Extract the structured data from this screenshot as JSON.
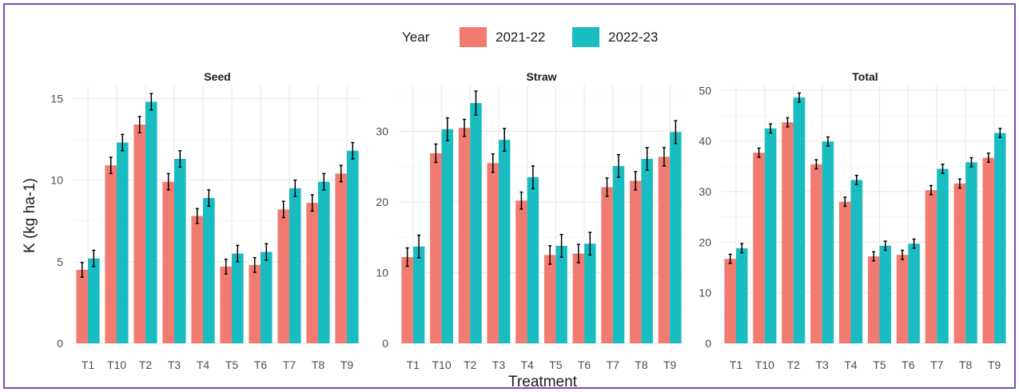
{
  "legend": {
    "title": "Year"
  },
  "axes": {
    "xlabel": "Treatment",
    "ylabel": "K (kg ha-1)"
  },
  "colors": {
    "2021-22": "#f17b70",
    "2022-23": "#19bcc1",
    "error_bar": "#000000",
    "grid": "#ebebeb",
    "frame": "#7b4fb5"
  },
  "chart_data": [
    {
      "type": "bar",
      "title": "Seed",
      "categories": [
        "T1",
        "T10",
        "T2",
        "T3",
        "T4",
        "T5",
        "T6",
        "T7",
        "T8",
        "T9"
      ],
      "ylim": [
        0,
        15.8
      ],
      "yticks": [
        0,
        5,
        10,
        15
      ],
      "grid": true,
      "legend_position": "top",
      "series": [
        {
          "name": "2021-22",
          "values": [
            4.5,
            10.9,
            13.4,
            9.9,
            7.8,
            4.7,
            4.8,
            8.2,
            8.6,
            10.4
          ],
          "errors": [
            0.45,
            0.5,
            0.5,
            0.5,
            0.45,
            0.45,
            0.45,
            0.5,
            0.5,
            0.5
          ]
        },
        {
          "name": "2022-23",
          "values": [
            5.2,
            12.3,
            14.8,
            11.3,
            8.9,
            5.5,
            5.6,
            9.5,
            9.9,
            11.8
          ],
          "errors": [
            0.5,
            0.5,
            0.5,
            0.5,
            0.5,
            0.5,
            0.5,
            0.5,
            0.5,
            0.5
          ]
        }
      ]
    },
    {
      "type": "bar",
      "title": "Straw",
      "categories": [
        "T1",
        "T10",
        "T2",
        "T3",
        "T4",
        "T5",
        "T6",
        "T7",
        "T8",
        "T9"
      ],
      "ylim": [
        0,
        36.5
      ],
      "yticks": [
        0,
        10,
        20,
        30
      ],
      "grid": true,
      "series": [
        {
          "name": "2021-22",
          "values": [
            12.2,
            26.9,
            30.5,
            25.5,
            20.2,
            12.5,
            12.7,
            22.1,
            23.0,
            26.4
          ],
          "errors": [
            1.3,
            1.3,
            1.2,
            1.3,
            1.2,
            1.3,
            1.3,
            1.3,
            1.3,
            1.3
          ]
        },
        {
          "name": "2022-23",
          "values": [
            13.7,
            30.3,
            34.0,
            28.8,
            23.5,
            13.8,
            14.1,
            25.1,
            26.1,
            29.9
          ],
          "errors": [
            1.6,
            1.6,
            1.7,
            1.6,
            1.6,
            1.6,
            1.6,
            1.6,
            1.6,
            1.6
          ]
        }
      ]
    },
    {
      "type": "bar",
      "title": "Total",
      "categories": [
        "T1",
        "T10",
        "T2",
        "T3",
        "T4",
        "T5",
        "T6",
        "T7",
        "T8",
        "T9"
      ],
      "ylim": [
        0,
        51
      ],
      "yticks": [
        0,
        10,
        20,
        30,
        40,
        50
      ],
      "grid": true,
      "series": [
        {
          "name": "2021-22",
          "values": [
            16.7,
            37.7,
            43.7,
            35.4,
            28.0,
            17.2,
            17.5,
            30.3,
            31.6,
            36.7
          ],
          "errors": [
            0.9,
            0.9,
            0.9,
            0.9,
            0.9,
            0.9,
            0.9,
            0.9,
            0.9,
            0.9
          ]
        },
        {
          "name": "2022-23",
          "values": [
            18.8,
            42.5,
            48.6,
            39.9,
            32.3,
            19.3,
            19.7,
            34.5,
            35.8,
            41.6
          ],
          "errors": [
            0.9,
            0.9,
            0.9,
            0.9,
            0.9,
            0.9,
            0.9,
            0.9,
            0.9,
            0.9
          ]
        }
      ]
    }
  ]
}
